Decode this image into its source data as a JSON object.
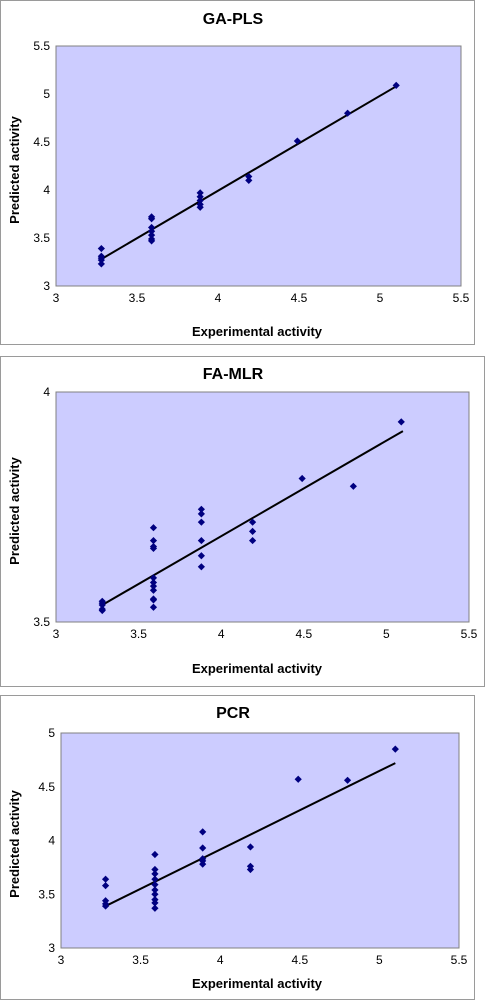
{
  "colors": {
    "plot_bg": "#ccccff",
    "marker": "#000080",
    "line": "#000000"
  },
  "chart_data": [
    {
      "type": "scatter",
      "title": "GA-PLS",
      "xlabel": "Experimental activity",
      "ylabel": "Predicted activity",
      "xlim": [
        3,
        5.5
      ],
      "ylim": [
        3,
        5.5
      ],
      "xticks": [
        3,
        3.5,
        4,
        4.5,
        5,
        5.5
      ],
      "yticks": [
        3,
        3.5,
        4,
        4.5,
        5,
        5.5
      ],
      "xtick_labels": [
        "3",
        "3.5",
        "4",
        "4.5",
        "5",
        "5.5"
      ],
      "ytick_labels": [
        "3",
        "3.5",
        "4",
        "4.5",
        "5",
        "5.5"
      ],
      "trendline": [
        [
          3.28,
          3.28
        ],
        [
          5.1,
          5.08
        ]
      ],
      "points": [
        [
          3.28,
          3.39
        ],
        [
          3.28,
          3.31
        ],
        [
          3.28,
          3.29
        ],
        [
          3.28,
          3.27
        ],
        [
          3.28,
          3.23
        ],
        [
          3.59,
          3.72
        ],
        [
          3.59,
          3.7
        ],
        [
          3.59,
          3.61
        ],
        [
          3.59,
          3.57
        ],
        [
          3.59,
          3.53
        ],
        [
          3.59,
          3.49
        ],
        [
          3.59,
          3.47
        ],
        [
          3.89,
          3.97
        ],
        [
          3.89,
          3.93
        ],
        [
          3.89,
          3.89
        ],
        [
          3.89,
          3.85
        ],
        [
          3.89,
          3.82
        ],
        [
          4.19,
          4.14
        ],
        [
          4.19,
          4.1
        ],
        [
          4.49,
          4.51
        ],
        [
          4.8,
          4.8
        ],
        [
          5.1,
          5.09
        ]
      ]
    },
    {
      "type": "scatter",
      "title": "FA-MLR",
      "xlabel": "Experimental activity",
      "ylabel": "Predicted activity",
      "xlim": [
        3,
        5.5
      ],
      "ylim": [
        3.5,
        4
      ],
      "xticks": [
        3,
        3.5,
        4,
        4.5,
        5,
        5.5
      ],
      "yticks": [
        3.5,
        4
      ],
      "xtick_labels": [
        "3",
        "3.5",
        "4",
        "4.5",
        "5",
        "5.5"
      ],
      "ytick_labels": [
        "3.5",
        "4"
      ],
      "trendline": [
        [
          3.28,
          3.537
        ],
        [
          5.1,
          3.915
        ]
      ],
      "points": [
        [
          3.28,
          3.545
        ],
        [
          3.28,
          3.541
        ],
        [
          3.28,
          3.537
        ],
        [
          3.28,
          3.528
        ],
        [
          3.28,
          3.525
        ],
        [
          3.59,
          3.705
        ],
        [
          3.59,
          3.677
        ],
        [
          3.59,
          3.664
        ],
        [
          3.59,
          3.66
        ],
        [
          3.59,
          3.596
        ],
        [
          3.59,
          3.586
        ],
        [
          3.59,
          3.578
        ],
        [
          3.59,
          3.569
        ],
        [
          3.59,
          3.55
        ],
        [
          3.59,
          3.548
        ],
        [
          3.59,
          3.532
        ],
        [
          3.88,
          3.745
        ],
        [
          3.88,
          3.735
        ],
        [
          3.88,
          3.717
        ],
        [
          3.88,
          3.677
        ],
        [
          3.88,
          3.644
        ],
        [
          3.88,
          3.62
        ],
        [
          4.19,
          3.717
        ],
        [
          4.19,
          3.697
        ],
        [
          4.19,
          3.677
        ],
        [
          4.49,
          3.812
        ],
        [
          4.8,
          3.795
        ],
        [
          5.09,
          3.935
        ]
      ]
    },
    {
      "type": "scatter",
      "title": "PCR",
      "xlabel": "Experimental activity",
      "ylabel": "Predicted activity",
      "xlim": [
        3,
        5.5
      ],
      "ylim": [
        3,
        5
      ],
      "xticks": [
        3,
        3.5,
        4,
        4.5,
        5,
        5.5
      ],
      "yticks": [
        3,
        3.5,
        4,
        4.5,
        5
      ],
      "xtick_labels": [
        "3",
        "3.5",
        "4",
        "4.5",
        "5",
        "5.5"
      ],
      "ytick_labels": [
        "3",
        "3.5",
        "4",
        "4.5",
        "5"
      ],
      "trendline": [
        [
          3.28,
          3.39
        ],
        [
          5.1,
          4.72
        ]
      ],
      "points": [
        [
          3.28,
          3.64
        ],
        [
          3.28,
          3.58
        ],
        [
          3.28,
          3.44
        ],
        [
          3.28,
          3.41
        ],
        [
          3.28,
          3.39
        ],
        [
          3.59,
          3.87
        ],
        [
          3.59,
          3.73
        ],
        [
          3.59,
          3.69
        ],
        [
          3.59,
          3.64
        ],
        [
          3.59,
          3.59
        ],
        [
          3.59,
          3.54
        ],
        [
          3.59,
          3.5
        ],
        [
          3.59,
          3.45
        ],
        [
          3.59,
          3.42
        ],
        [
          3.59,
          3.37
        ],
        [
          3.89,
          4.08
        ],
        [
          3.89,
          3.93
        ],
        [
          3.89,
          3.83
        ],
        [
          3.89,
          3.81
        ],
        [
          3.89,
          3.78
        ],
        [
          4.19,
          3.94
        ],
        [
          4.19,
          3.76
        ],
        [
          4.19,
          3.73
        ],
        [
          4.49,
          4.57
        ],
        [
          4.8,
          4.56
        ],
        [
          5.1,
          4.85
        ]
      ]
    }
  ]
}
